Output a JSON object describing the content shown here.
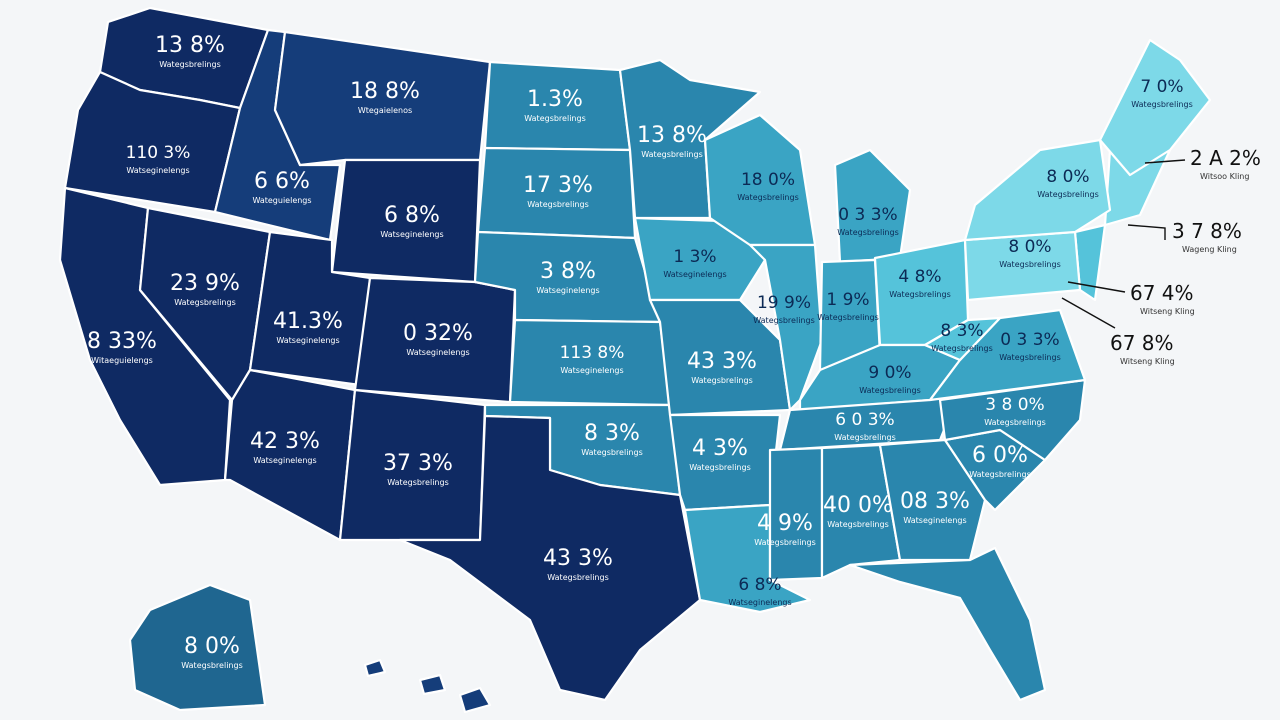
{
  "colors": {
    "background": "#f4f6f8",
    "darkest": "#0f2a63",
    "dark": "#153d7a",
    "mid_dark": "#1f6690",
    "mid": "#2a86ad",
    "mid_light": "#3aa4c4",
    "light": "#55c3da",
    "lightest": "#7dd9e8"
  },
  "states": [
    {
      "name": "washington",
      "label": "13 8%",
      "sub": "Wategsbrelings"
    },
    {
      "name": "oregon",
      "label": "110 3%",
      "sub": "Watseginelengs"
    },
    {
      "name": "california",
      "label": "8 33%",
      "sub": "Witaeguielengs"
    },
    {
      "name": "idaho",
      "label": "6 6%",
      "sub": "Wateguielengs"
    },
    {
      "name": "nevada",
      "label": "23 9%",
      "sub": "Wategsbrelings"
    },
    {
      "name": "montana",
      "label": "18 8%",
      "sub": "Wtegaielenos"
    },
    {
      "name": "wyoming",
      "label": "6 8%",
      "sub": "Watseginelengs"
    },
    {
      "name": "utah",
      "label": "41.3%",
      "sub": "Watseginelengs"
    },
    {
      "name": "colorado",
      "label": "0 32%",
      "sub": "Watseginelengs"
    },
    {
      "name": "arizona",
      "label": "42 3%",
      "sub": "Watseginelengs"
    },
    {
      "name": "new-mexico",
      "label": "37 3%",
      "sub": "Wategsbrelings"
    },
    {
      "name": "north-dakota",
      "label": "1.3%",
      "sub": "Wategsbrelings"
    },
    {
      "name": "south-dakota",
      "label": "17 3%",
      "sub": "Wategsbrelings"
    },
    {
      "name": "nebraska",
      "label": "3 8%",
      "sub": "Watseginelengs"
    },
    {
      "name": "kansas",
      "label": "113 8%",
      "sub": "Watseginelengs"
    },
    {
      "name": "oklahoma",
      "label": "8 3%",
      "sub": "Wategsbrelings"
    },
    {
      "name": "texas",
      "label": "43 3%",
      "sub": "Wategsbrelings"
    },
    {
      "name": "minnesota",
      "label": "13 8%",
      "sub": "Wategsbrelings"
    },
    {
      "name": "iowa",
      "label": "1 3%",
      "sub": "Watseginelengs"
    },
    {
      "name": "missouri",
      "label": "43 3%",
      "sub": "Wategsbrelings"
    },
    {
      "name": "arkansas",
      "label": "4 3%",
      "sub": "Wategsbrelings"
    },
    {
      "name": "louisiana",
      "label": "6 8%",
      "sub": "Watseginelengs"
    },
    {
      "name": "wisconsin",
      "label": "18 0%",
      "sub": "Wategsbrelings"
    },
    {
      "name": "illinois",
      "label": "19 9%",
      "sub": "Wategsbrelings"
    },
    {
      "name": "michigan",
      "label": "0 3 3%",
      "sub": "Wategsbrelings"
    },
    {
      "name": "indiana",
      "label": "1 9%",
      "sub": "Wategsbrelings"
    },
    {
      "name": "ohio",
      "label": "4 8%",
      "sub": "Wategsbrelings"
    },
    {
      "name": "kentucky",
      "label": "9 0%",
      "sub": "Wategsbrelings"
    },
    {
      "name": "tennessee",
      "label": "6 0 3%",
      "sub": "Wategsbrelings"
    },
    {
      "name": "mississippi",
      "label": "4 9%",
      "sub": "Wategsbrelings"
    },
    {
      "name": "alabama",
      "label": "40 0%",
      "sub": "Wategsbrelings"
    },
    {
      "name": "georgia",
      "label": "08 3%",
      "sub": "Watseginelengs"
    },
    {
      "name": "florida",
      "label": "",
      "sub": ""
    },
    {
      "name": "south-carolina",
      "label": "6 0%",
      "sub": "Wategsbrelings"
    },
    {
      "name": "north-carolina",
      "label": "3 8 0%",
      "sub": "Wategsbrelings"
    },
    {
      "name": "virginia",
      "label": "0 3 3%",
      "sub": "Wategsbrelings"
    },
    {
      "name": "west-virginia",
      "label": "8 3%",
      "sub": "Wategsbrelings"
    },
    {
      "name": "pennsylvania",
      "label": "8 0%",
      "sub": "Wategsbrelings"
    },
    {
      "name": "new-york",
      "label": "8 0%",
      "sub": "Wategsbrelings"
    },
    {
      "name": "maine",
      "label": "7 0%",
      "sub": "Wategsbrelings"
    },
    {
      "name": "alaska",
      "label": "8 0%",
      "sub": "Wategsbrelings"
    }
  ],
  "callouts": [
    {
      "name": "callout-1",
      "label": "2 A 2%",
      "sub": "Witsoo Kling"
    },
    {
      "name": "callout-2",
      "label": "3 7 8%",
      "sub": "Wageng Kling"
    },
    {
      "name": "callout-3",
      "label": "67 4%",
      "sub": "Witseng Kling"
    },
    {
      "name": "callout-4",
      "label": "67 8%",
      "sub": "Witseng Kling"
    }
  ]
}
